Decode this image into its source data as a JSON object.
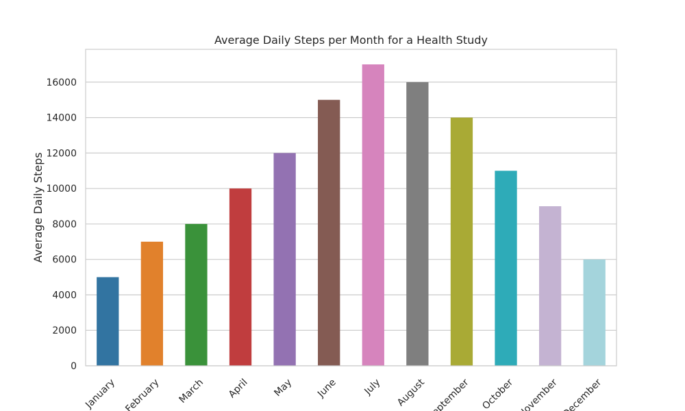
{
  "chart_data": {
    "type": "bar",
    "title": "Average Daily Steps per Month for a Health Study",
    "xlabel": "",
    "ylabel": "Average Daily Steps",
    "categories": [
      "January",
      "February",
      "March",
      "April",
      "May",
      "June",
      "July",
      "August",
      "September",
      "October",
      "November",
      "December"
    ],
    "values": [
      5000,
      7000,
      8000,
      10000,
      12000,
      15000,
      17000,
      16000,
      14000,
      11000,
      9000,
      6000
    ],
    "colors": [
      "#3274a1",
      "#e1812c",
      "#3a923a",
      "#c03d3e",
      "#9372b2",
      "#845b53",
      "#d684bd",
      "#7f7f7f",
      "#a9aa35",
      "#2eabb8",
      "#c4b3d2",
      "#a4d4dc"
    ],
    "ylim": [
      0,
      17850
    ],
    "yticks": [
      0,
      2000,
      4000,
      6000,
      8000,
      10000,
      12000,
      14000,
      16000
    ],
    "grid": "horizontal",
    "legend": "none"
  }
}
